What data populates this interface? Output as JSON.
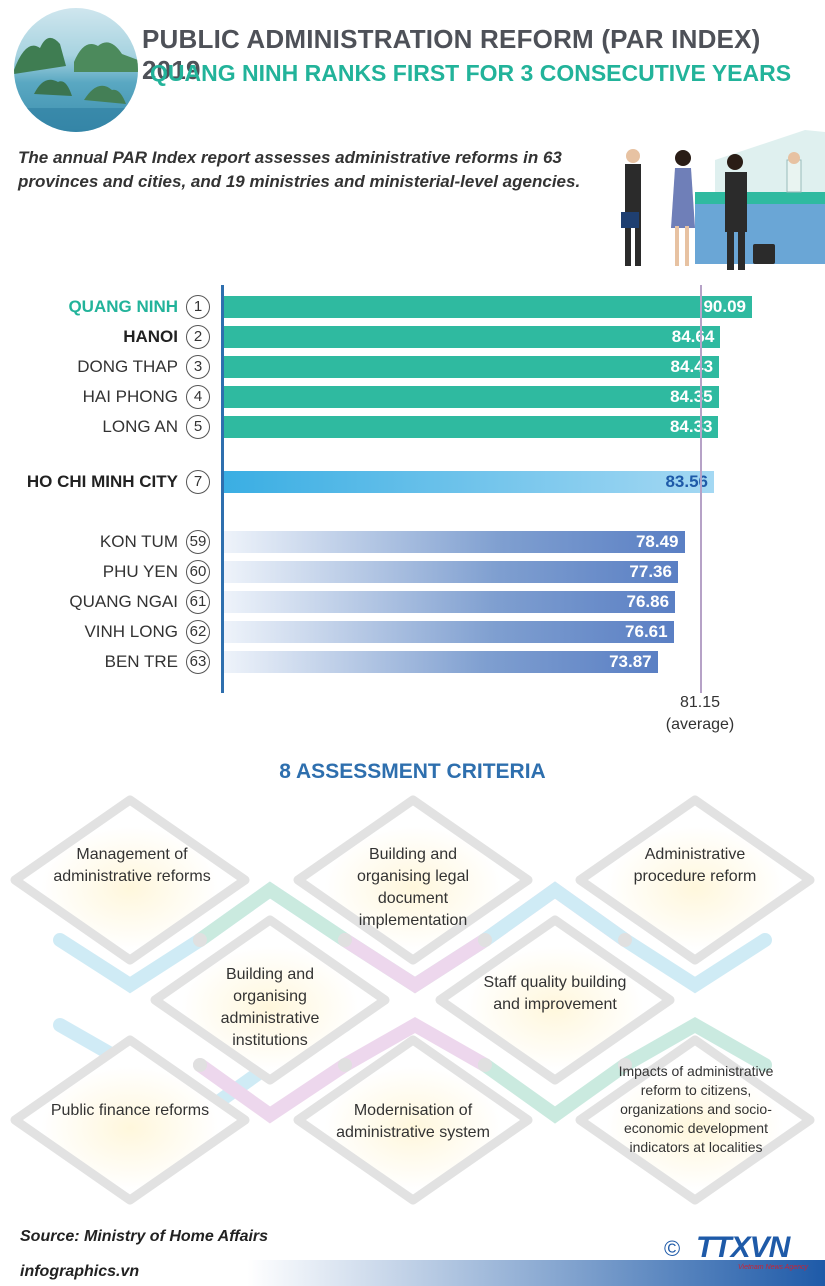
{
  "header": {
    "title": "PUBLIC ADMINISTRATION REFORM (PAR INDEX) 2019",
    "subtitle": "QUANG NINH RANKS FIRST FOR 3 CONSECUTIVE YEARS",
    "intro": "The annual PAR Index report assesses administrative reforms in 63 provinces and cities, and 19 ministries and ministerial-level agencies."
  },
  "chart_data": {
    "type": "bar",
    "orientation": "horizontal",
    "categories": [
      "QUANG NINH",
      "HANOI",
      "DONG THAP",
      "HAI PHONG",
      "LONG AN",
      "HO CHI MINH CITY",
      "KON TUM",
      "PHU YEN",
      "QUANG NGAI",
      "VINH LONG",
      "BEN TRE"
    ],
    "ranks": [
      "1",
      "2",
      "3",
      "4",
      "5",
      "7",
      "59",
      "60",
      "61",
      "62",
      "63"
    ],
    "values": [
      90.09,
      84.64,
      84.43,
      84.35,
      84.33,
      83.56,
      78.49,
      77.36,
      76.86,
      76.61,
      73.87
    ],
    "value_labels": [
      "90.09",
      "84.64",
      "84.43",
      "84.35",
      "84.33",
      "83.56",
      "78.49",
      "77.36",
      "76.86",
      "76.61",
      "73.87"
    ],
    "groups": [
      "top",
      "top",
      "top",
      "top",
      "top",
      "mid",
      "bottom",
      "bottom",
      "bottom",
      "bottom",
      "bottom"
    ],
    "average": 81.15,
    "average_value_label": "81.15",
    "average_label": "(average)",
    "colors": {
      "top": "#2fbaa0",
      "mid": "#3aaee3",
      "bottom": "#5a7fc4",
      "highlight_label": "#22b39a"
    }
  },
  "criteria": {
    "title": "8 ASSESSMENT CRITERIA",
    "items": [
      "Management of administrative reforms",
      "Building and organising legal document implementation",
      "Administrative procedure reform",
      "Building and organising administrative institutions",
      "Staff quality building and improvement",
      "Public finance reforms",
      "Modernisation of administrative system",
      "Impacts of administrative reform to citizens, organizations and socio-economic development indicators at localities"
    ]
  },
  "footer": {
    "source": "Source: Ministry of Home Affairs",
    "site": "infographics.vn",
    "copyright": "©",
    "agency": "TTXVN",
    "agency_sub": "Vietnam News Agency"
  }
}
